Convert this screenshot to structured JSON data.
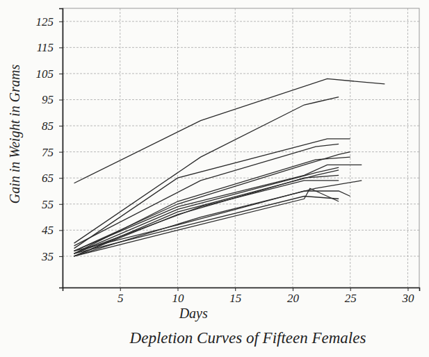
{
  "chart_data": {
    "type": "line",
    "title": "Depletion Curves of Fifteen Females",
    "x_label": "Days",
    "y_label": "Gain in Weight in Grams",
    "xlim": [
      0,
      31
    ],
    "xticks": [
      5,
      10,
      15,
      20,
      25,
      30
    ],
    "ylim": [
      23,
      130
    ],
    "yticks": [
      35,
      45,
      55,
      65,
      75,
      85,
      95,
      105,
      115,
      125
    ],
    "grid": true,
    "color": "#2b2b2b",
    "line_style": "solid",
    "series": [
      {
        "x": [
          1,
          12,
          23,
          28
        ],
        "values": [
          63,
          87,
          103,
          101
        ]
      },
      {
        "x": [
          1,
          12,
          21,
          22,
          24
        ],
        "values": [
          40,
          73,
          93,
          94,
          96
        ]
      },
      {
        "x": [
          1,
          10,
          23,
          25
        ],
        "values": [
          38,
          65,
          80,
          80
        ]
      },
      {
        "x": [
          1,
          12,
          22,
          24
        ],
        "values": [
          39,
          64,
          77,
          78
        ]
      },
      {
        "x": [
          1,
          10,
          21,
          24,
          25
        ],
        "values": [
          37,
          55,
          70,
          74,
          75
        ]
      },
      {
        "x": [
          1,
          10,
          22,
          25
        ],
        "values": [
          36,
          56,
          72,
          73
        ]
      },
      {
        "x": [
          1,
          10,
          21,
          23,
          26
        ],
        "values": [
          37,
          54,
          66,
          70,
          70
        ]
      },
      {
        "x": [
          1,
          10,
          22,
          24
        ],
        "values": [
          36,
          53,
          67,
          69
        ]
      },
      {
        "x": [
          1,
          10,
          22,
          24
        ],
        "values": [
          35,
          52,
          66,
          68
        ]
      },
      {
        "x": [
          1,
          10,
          21,
          24
        ],
        "values": [
          35,
          51,
          65,
          66
        ]
      },
      {
        "x": [
          1,
          12,
          21,
          24
        ],
        "values": [
          36,
          54,
          64,
          64
        ]
      },
      {
        "x": [
          1,
          12,
          22,
          26
        ],
        "values": [
          35,
          50,
          61,
          64
        ]
      },
      {
        "x": [
          1,
          10,
          21,
          24,
          25
        ],
        "values": [
          37,
          47,
          60,
          60,
          58
        ]
      },
      {
        "x": [
          1,
          10,
          21,
          24
        ],
        "values": [
          36,
          46,
          58,
          57
        ]
      },
      {
        "x": [
          1,
          10,
          21,
          21.5,
          24
        ],
        "values": [
          35,
          45,
          57,
          61,
          56
        ]
      }
    ]
  }
}
